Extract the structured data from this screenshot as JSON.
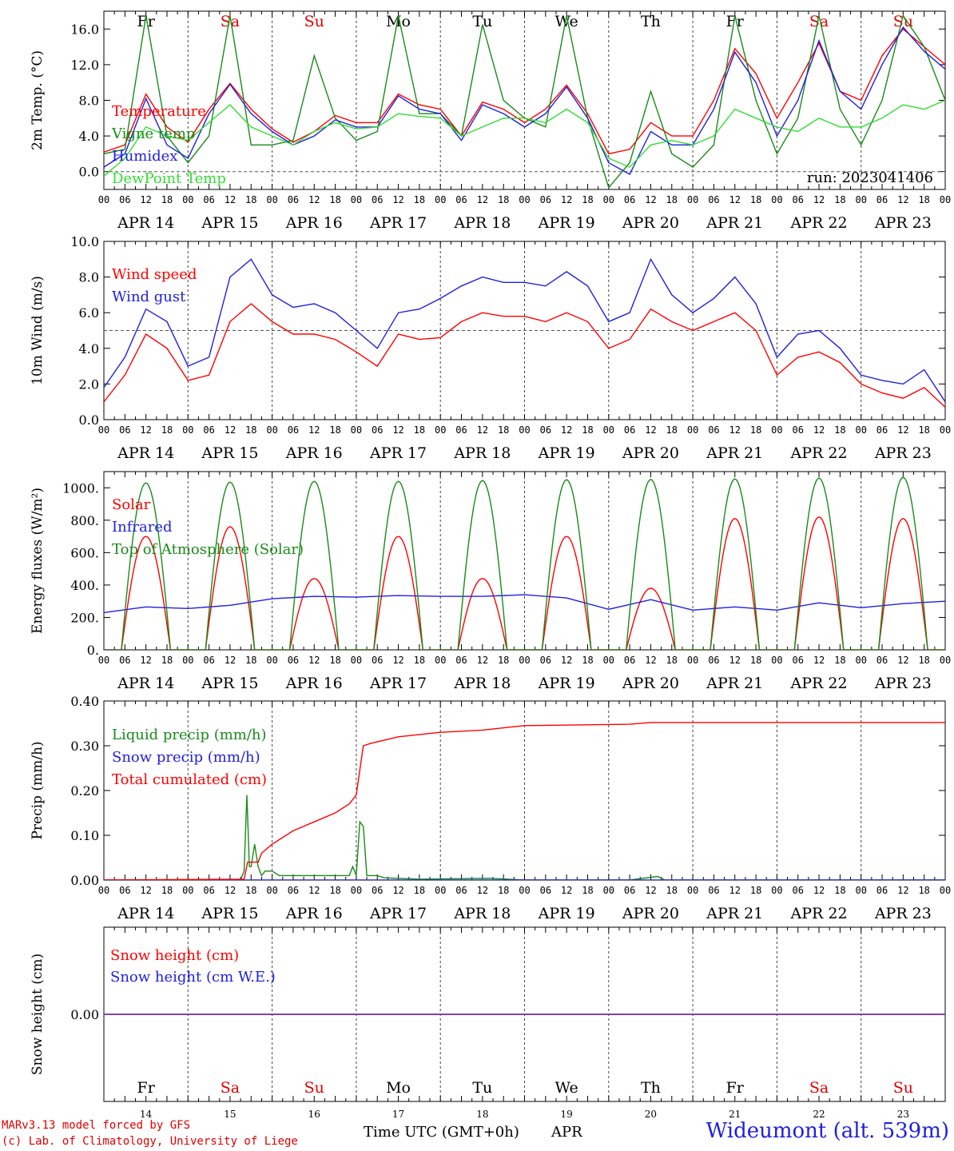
{
  "meta": {
    "run_label": "run: 2023041406",
    "credit_line1": "MARv3.13 model forced by GFS",
    "credit_line2": "(c) Lab. of Climatology, University of Liege",
    "x_title": "Time UTC (GMT+0h)",
    "month": "APR",
    "station": "Wideumont (alt. 539m)"
  },
  "time_axis": {
    "hour_labels": [
      "00",
      "06",
      "12",
      "18"
    ],
    "end_label": "00",
    "dates": [
      "APR 14",
      "APR 15",
      "APR 16",
      "APR 17",
      "APR 18",
      "APR 19",
      "APR 20",
      "APR 21",
      "APR 22",
      "APR 23"
    ],
    "weekdays": [
      "Fr",
      "Sa",
      "Su",
      "Mo",
      "Tu",
      "We",
      "Th",
      "Fr",
      "Sa",
      "Su"
    ],
    "day_numbers": [
      "14",
      "15",
      "16",
      "17",
      "18",
      "19",
      "20",
      "21",
      "22",
      "23"
    ],
    "weekend_color": "#e00000",
    "weekday_color": "#000000"
  },
  "chart_data": [
    {
      "type": "line",
      "ylabel": "2m Temp. (°C)",
      "ylim": [
        -2,
        18
      ],
      "yticks": [
        0,
        4,
        8,
        12,
        16
      ],
      "ytick_labels": [
        "0.0",
        "4.0",
        "8.0",
        "12.0",
        "16.0"
      ],
      "ref_line": 0,
      "x_unit": "hours since APR 14 00 UTC",
      "xlim": [
        0,
        240
      ],
      "series": [
        {
          "name": "Temperature",
          "color": "#ff0000",
          "x": [
            0,
            6,
            12,
            18,
            24,
            30,
            36,
            42,
            48,
            54,
            60,
            66,
            72,
            78,
            84,
            90,
            96,
            102,
            108,
            114,
            120,
            126,
            132,
            138,
            144,
            150,
            156,
            162,
            168,
            174,
            180,
            186,
            192,
            198,
            204,
            210,
            216,
            222,
            228,
            234,
            240
          ],
          "values": [
            2.2,
            3.0,
            8.7,
            5.0,
            3.3,
            7.0,
            9.9,
            7.0,
            4.8,
            3.3,
            4.5,
            6.3,
            5.5,
            5.5,
            8.7,
            7.5,
            7.0,
            4.0,
            7.8,
            7.0,
            5.5,
            7.0,
            9.7,
            6.5,
            2.0,
            2.5,
            5.5,
            4.0,
            4.0,
            8.0,
            13.8,
            11.0,
            6.0,
            10.0,
            14.4,
            9.0,
            8.0,
            13.0,
            16.0,
            14.0,
            12.0
          ]
        },
        {
          "name": "Vigne temp",
          "color": "#1a8a1a",
          "x": [
            0,
            6,
            12,
            18,
            24,
            30,
            36,
            42,
            48,
            54,
            60,
            66,
            72,
            78,
            84,
            90,
            96,
            102,
            108,
            114,
            120,
            126,
            132,
            138,
            144,
            150,
            156,
            162,
            168,
            174,
            180,
            186,
            192,
            198,
            204,
            210,
            216,
            222,
            228,
            234,
            240
          ],
          "values": [
            2.0,
            2.5,
            17.5,
            4.0,
            1.0,
            4.0,
            17.5,
            3.0,
            3.0,
            3.5,
            13.0,
            6.0,
            3.5,
            4.5,
            17.5,
            6.5,
            6.5,
            4.0,
            16.5,
            8.0,
            6.0,
            5.0,
            17.5,
            6.0,
            -1.8,
            1.0,
            9.0,
            2.0,
            0.5,
            3.0,
            17.5,
            8.0,
            2.0,
            6.0,
            17.5,
            7.0,
            3.0,
            8.0,
            17.5,
            14.0,
            8.0
          ]
        },
        {
          "name": "Humidex",
          "color": "#2020e0",
          "x": [
            0,
            6,
            12,
            18,
            24,
            30,
            36,
            42,
            48,
            54,
            60,
            66,
            72,
            78,
            84,
            90,
            96,
            102,
            108,
            114,
            120,
            126,
            132,
            138,
            144,
            150,
            156,
            162,
            168,
            174,
            180,
            186,
            192,
            198,
            204,
            210,
            216,
            222,
            228,
            234,
            240
          ],
          "values": [
            0.5,
            2.0,
            8.2,
            3.0,
            1.5,
            6.5,
            9.8,
            6.5,
            4.5,
            3.0,
            4.0,
            5.8,
            5.0,
            5.0,
            8.5,
            7.0,
            6.5,
            3.5,
            7.5,
            6.5,
            5.0,
            6.5,
            9.5,
            6.0,
            1.0,
            -0.3,
            4.5,
            3.0,
            3.0,
            7.0,
            13.4,
            10.0,
            4.0,
            8.0,
            14.7,
            9.0,
            7.0,
            12.0,
            16.2,
            13.5,
            11.5
          ]
        },
        {
          "name": "DewPoint Temp",
          "color": "#33dd33",
          "x": [
            0,
            6,
            12,
            18,
            24,
            30,
            36,
            42,
            48,
            54,
            60,
            66,
            72,
            78,
            84,
            90,
            96,
            102,
            108,
            114,
            120,
            126,
            132,
            138,
            144,
            150,
            156,
            162,
            168,
            174,
            180,
            186,
            192,
            198,
            204,
            210,
            216,
            222,
            228,
            234,
            240
          ],
          "values": [
            -0.5,
            1.5,
            5.0,
            4.0,
            3.5,
            5.5,
            7.5,
            5.0,
            4.0,
            3.0,
            4.5,
            5.5,
            4.8,
            5.0,
            6.5,
            6.2,
            6.0,
            4.0,
            5.0,
            6.0,
            6.0,
            5.5,
            7.0,
            5.5,
            1.5,
            0.5,
            3.0,
            3.5,
            3.0,
            4.0,
            7.0,
            6.0,
            5.0,
            4.5,
            6.0,
            5.0,
            5.0,
            6.0,
            7.5,
            7.0,
            8.0
          ]
        }
      ]
    },
    {
      "type": "line",
      "ylabel": "10m Wind (m/s)",
      "ylim": [
        0,
        10
      ],
      "yticks": [
        0,
        2,
        4,
        6,
        8,
        10
      ],
      "ytick_labels": [
        "0.0",
        "2.0",
        "4.0",
        "6.0",
        "8.0",
        "10.0"
      ],
      "ref_line": 5,
      "x_unit": "hours since APR 14 00 UTC",
      "xlim": [
        0,
        240
      ],
      "series": [
        {
          "name": "Wind speed",
          "color": "#ff0000",
          "x": [
            0,
            6,
            12,
            18,
            24,
            30,
            36,
            42,
            48,
            54,
            60,
            66,
            72,
            78,
            84,
            90,
            96,
            102,
            108,
            114,
            120,
            126,
            132,
            138,
            144,
            150,
            156,
            162,
            168,
            174,
            180,
            186,
            192,
            198,
            204,
            210,
            216,
            222,
            228,
            234,
            240
          ],
          "values": [
            1.0,
            2.5,
            4.8,
            4.0,
            2.2,
            2.5,
            5.5,
            6.5,
            5.5,
            4.8,
            4.8,
            4.5,
            3.8,
            3.0,
            4.8,
            4.5,
            4.6,
            5.5,
            6.0,
            5.8,
            5.8,
            5.5,
            6.0,
            5.5,
            4.0,
            4.5,
            6.2,
            5.5,
            5.0,
            5.5,
            6.0,
            5.0,
            2.5,
            3.5,
            3.8,
            3.2,
            2.0,
            1.5,
            1.2,
            1.8,
            0.7
          ]
        },
        {
          "name": "Wind gust",
          "color": "#2020e0",
          "x": [
            0,
            6,
            12,
            18,
            24,
            30,
            36,
            42,
            48,
            54,
            60,
            66,
            72,
            78,
            84,
            90,
            96,
            102,
            108,
            114,
            120,
            126,
            132,
            138,
            144,
            150,
            156,
            162,
            168,
            174,
            180,
            186,
            192,
            198,
            204,
            210,
            216,
            222,
            228,
            234,
            240
          ],
          "values": [
            1.8,
            3.5,
            6.2,
            5.5,
            3.0,
            3.5,
            8.0,
            9.0,
            7.0,
            6.3,
            6.5,
            6.0,
            5.0,
            4.0,
            6.0,
            6.2,
            6.8,
            7.5,
            8.0,
            7.7,
            7.7,
            7.5,
            8.3,
            7.5,
            5.5,
            6.0,
            9.0,
            7.0,
            6.0,
            6.8,
            8.0,
            6.5,
            3.5,
            4.8,
            5.0,
            4.0,
            2.5,
            2.2,
            2.0,
            2.8,
            1.0
          ]
        }
      ]
    },
    {
      "type": "line",
      "ylabel": "Energy fluxes (W/m²)",
      "ylim": [
        0,
        1100
      ],
      "yticks": [
        0,
        200,
        400,
        600,
        800,
        1000
      ],
      "ytick_labels": [
        "0.",
        "200.",
        "400.",
        "600.",
        "800.",
        "1000."
      ],
      "x_unit": "hours since APR 14 00 UTC",
      "xlim": [
        0,
        240
      ],
      "series": [
        {
          "name": "Solar",
          "color": "#ff0000",
          "day_peaks": [
            700,
            760,
            440,
            700,
            440,
            700,
            380,
            810,
            820,
            810
          ],
          "peak_hour": 12,
          "sunrise_hour": 5,
          "sunset_hour": 19
        },
        {
          "name": "Infrared",
          "color": "#2020e0",
          "x": [
            0,
            12,
            24,
            36,
            48,
            60,
            72,
            84,
            96,
            108,
            120,
            132,
            144,
            156,
            168,
            180,
            192,
            204,
            216,
            228,
            240
          ],
          "values": [
            230,
            265,
            255,
            275,
            315,
            330,
            325,
            335,
            330,
            330,
            340,
            320,
            250,
            310,
            245,
            265,
            245,
            290,
            260,
            285,
            300
          ]
        },
        {
          "name": "Top of Atmosphere (Solar)",
          "color": "#1a8a1a",
          "day_peaks": [
            1030,
            1035,
            1040,
            1040,
            1045,
            1050,
            1052,
            1055,
            1060,
            1065
          ],
          "peak_hour": 12,
          "sunrise_hour": 5,
          "sunset_hour": 19
        }
      ]
    },
    {
      "type": "line",
      "ylabel": "Precip (mm/h)",
      "ylim": [
        0,
        0.4
      ],
      "yticks": [
        0,
        0.1,
        0.2,
        0.3,
        0.4
      ],
      "ytick_labels": [
        "0.00",
        "0.10",
        "0.20",
        "0.30",
        "0.40"
      ],
      "x_unit": "hours since APR 14 00 UTC",
      "xlim": [
        0,
        240
      ],
      "series": [
        {
          "name": "Liquid precip (mm/h)",
          "color": "#1a8a1a",
          "x": [
            0,
            39,
            40,
            40.8,
            41.5,
            42,
            43,
            44,
            44.5,
            45,
            46,
            48,
            50,
            56,
            66,
            70,
            71,
            72,
            73,
            74,
            75,
            76,
            78,
            80,
            90,
            110,
            120,
            150,
            158,
            160,
            240
          ],
          "values": [
            0,
            0,
            0.02,
            0.19,
            0.03,
            0.03,
            0.08,
            0.03,
            0.02,
            0.01,
            0.02,
            0.02,
            0.01,
            0.01,
            0.01,
            0.01,
            0.03,
            0.01,
            0.13,
            0.12,
            0.01,
            0.01,
            0.01,
            0.005,
            0.002,
            0.004,
            0,
            0,
            0.008,
            0,
            0
          ]
        },
        {
          "name": "Snow precip (mm/h)",
          "color": "#2020e0",
          "x": [
            0,
            240
          ],
          "values": [
            0,
            0
          ]
        },
        {
          "name": "Total cumulated (cm)",
          "color": "#ff0000",
          "x": [
            0,
            40,
            41,
            44,
            45,
            48,
            54,
            60,
            66,
            70,
            72,
            74,
            76,
            84,
            96,
            108,
            120,
            150,
            156,
            240
          ],
          "values": [
            0,
            0.002,
            0.04,
            0.04,
            0.06,
            0.08,
            0.11,
            0.13,
            0.15,
            0.17,
            0.19,
            0.3,
            0.305,
            0.32,
            0.33,
            0.335,
            0.345,
            0.348,
            0.352,
            0.352
          ]
        }
      ]
    },
    {
      "type": "line",
      "ylabel": "Snow height (cm)",
      "ylim": [
        -0.5,
        0.5
      ],
      "yticks": [
        0
      ],
      "ytick_labels": [
        "0.00"
      ],
      "x_unit": "hours since APR 14 00 UTC",
      "xlim": [
        0,
        240
      ],
      "series": [
        {
          "name": "Snow height (cm)",
          "color": "#ff0000",
          "x": [
            0,
            240
          ],
          "values": [
            0,
            0
          ]
        },
        {
          "name": "Snow height (cm W.E.)",
          "color": "#2020e0",
          "x": [
            0,
            240
          ],
          "values": [
            0,
            0
          ]
        }
      ]
    }
  ]
}
